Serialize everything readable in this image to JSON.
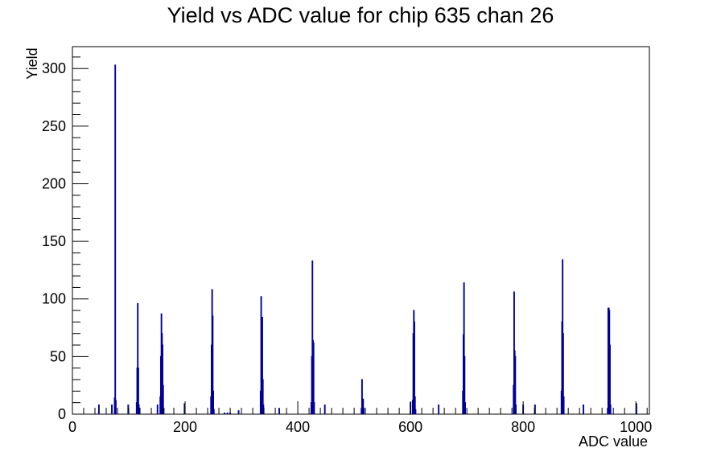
{
  "chart_data": {
    "type": "histogram",
    "title": "Yield vs ADC value for chip 635 chan 26",
    "xlabel": "ADC value",
    "ylabel": "Yield",
    "xlim": [
      0,
      1024
    ],
    "ylim": [
      0,
      319
    ],
    "x_ticks": [
      0,
      200,
      400,
      600,
      800,
      1000
    ],
    "y_ticks": [
      0,
      50,
      100,
      150,
      200,
      250,
      300
    ],
    "grid": false,
    "line_color": "#000099",
    "bins": [
      {
        "x": 47,
        "y": 8
      },
      {
        "x": 70,
        "y": 8
      },
      {
        "x": 75,
        "y": 14
      },
      {
        "x": 76,
        "y": 303
      },
      {
        "x": 77,
        "y": 12
      },
      {
        "x": 99,
        "y": 8
      },
      {
        "x": 114,
        "y": 10
      },
      {
        "x": 115,
        "y": 40
      },
      {
        "x": 116,
        "y": 96
      },
      {
        "x": 117,
        "y": 40
      },
      {
        "x": 118,
        "y": 8
      },
      {
        "x": 151,
        "y": 8
      },
      {
        "x": 156,
        "y": 15
      },
      {
        "x": 157,
        "y": 50
      },
      {
        "x": 158,
        "y": 87
      },
      {
        "x": 159,
        "y": 70
      },
      {
        "x": 160,
        "y": 60
      },
      {
        "x": 161,
        "y": 25
      },
      {
        "x": 162,
        "y": 5
      },
      {
        "x": 199,
        "y": 9
      },
      {
        "x": 246,
        "y": 15
      },
      {
        "x": 247,
        "y": 60
      },
      {
        "x": 248,
        "y": 108
      },
      {
        "x": 249,
        "y": 85
      },
      {
        "x": 250,
        "y": 20
      },
      {
        "x": 251,
        "y": 4
      },
      {
        "x": 270,
        "y": 1
      },
      {
        "x": 275,
        "y": 1
      },
      {
        "x": 280,
        "y": 1
      },
      {
        "x": 295,
        "y": 3
      },
      {
        "x": 334,
        "y": 20
      },
      {
        "x": 335,
        "y": 102
      },
      {
        "x": 336,
        "y": 84
      },
      {
        "x": 337,
        "y": 84
      },
      {
        "x": 338,
        "y": 30
      },
      {
        "x": 339,
        "y": 8
      },
      {
        "x": 367,
        "y": 5
      },
      {
        "x": 424,
        "y": 10
      },
      {
        "x": 425,
        "y": 50
      },
      {
        "x": 426,
        "y": 133
      },
      {
        "x": 427,
        "y": 64
      },
      {
        "x": 428,
        "y": 62
      },
      {
        "x": 429,
        "y": 10
      },
      {
        "x": 448,
        "y": 8
      },
      {
        "x": 513,
        "y": 5
      },
      {
        "x": 514,
        "y": 30
      },
      {
        "x": 515,
        "y": 13
      },
      {
        "x": 516,
        "y": 13
      },
      {
        "x": 517,
        "y": 5
      },
      {
        "x": 600,
        "y": 10
      },
      {
        "x": 604,
        "y": 12
      },
      {
        "x": 605,
        "y": 70
      },
      {
        "x": 606,
        "y": 90
      },
      {
        "x": 607,
        "y": 80
      },
      {
        "x": 608,
        "y": 15
      },
      {
        "x": 609,
        "y": 4
      },
      {
        "x": 650,
        "y": 8
      },
      {
        "x": 693,
        "y": 20
      },
      {
        "x": 694,
        "y": 69
      },
      {
        "x": 695,
        "y": 114
      },
      {
        "x": 696,
        "y": 50
      },
      {
        "x": 697,
        "y": 10
      },
      {
        "x": 783,
        "y": 25
      },
      {
        "x": 784,
        "y": 106
      },
      {
        "x": 785,
        "y": 55
      },
      {
        "x": 786,
        "y": 50
      },
      {
        "x": 787,
        "y": 8
      },
      {
        "x": 800,
        "y": 8
      },
      {
        "x": 821,
        "y": 8
      },
      {
        "x": 868,
        "y": 20
      },
      {
        "x": 869,
        "y": 80
      },
      {
        "x": 870,
        "y": 134
      },
      {
        "x": 871,
        "y": 70
      },
      {
        "x": 872,
        "y": 15
      },
      {
        "x": 907,
        "y": 8
      },
      {
        "x": 950,
        "y": 5
      },
      {
        "x": 951,
        "y": 92
      },
      {
        "x": 952,
        "y": 92
      },
      {
        "x": 953,
        "y": 90
      },
      {
        "x": 954,
        "y": 60
      },
      {
        "x": 955,
        "y": 8
      },
      {
        "x": 1001,
        "y": 9
      }
    ]
  }
}
